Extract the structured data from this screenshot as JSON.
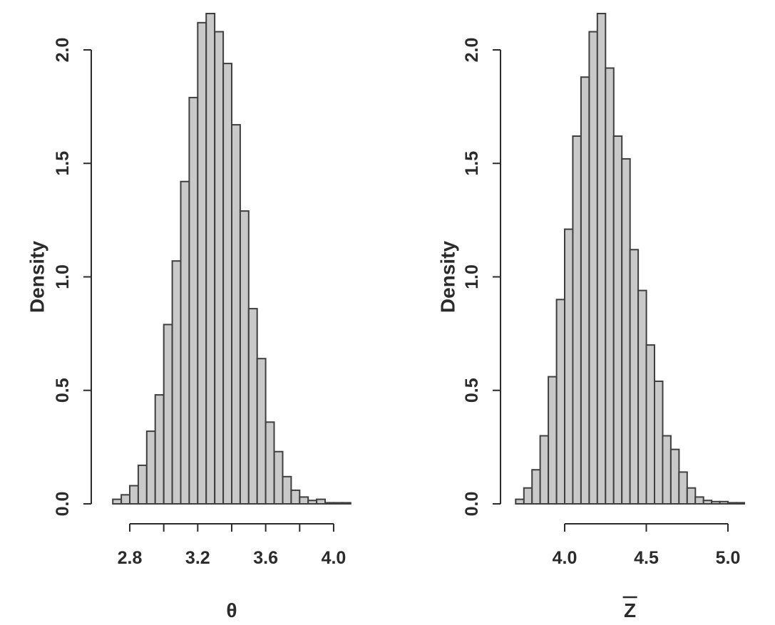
{
  "figure": {
    "background": "#ffffff",
    "axis_color": "#2b2b2b",
    "text_color": "#2b2b2b"
  },
  "chart_data": [
    {
      "type": "bar",
      "subtype": "histogram",
      "title": "",
      "xlabel": "θ",
      "ylabel": "Density",
      "grid": false,
      "legend": "none",
      "bin_start": 2.7,
      "bin_width": 0.05,
      "densities": [
        0.02,
        0.04,
        0.08,
        0.17,
        0.32,
        0.48,
        0.79,
        1.07,
        1.42,
        1.79,
        2.12,
        2.16,
        2.08,
        1.94,
        1.67,
        1.29,
        0.86,
        0.64,
        0.36,
        0.23,
        0.12,
        0.06,
        0.03,
        0.015,
        0.02,
        0.005,
        0.005,
        0.005
      ],
      "x_axis": {
        "range": [
          2.8,
          4.0
        ],
        "ticks": [
          2.8,
          3.0,
          3.2,
          3.4,
          3.6,
          3.8,
          4.0
        ],
        "labeled_ticks": [
          "2.8",
          "3.2",
          "3.6",
          "4.0"
        ]
      },
      "y_axis": {
        "ticks": [
          0.0,
          0.5,
          1.0,
          1.5,
          2.0
        ],
        "labels": [
          "0.0",
          "0.5",
          "1.0",
          "1.5",
          "2.0"
        ]
      },
      "xlim": [
        2.7,
        4.1
      ],
      "ylim": [
        0,
        2.17
      ],
      "bar_fill": "#c9c9c9",
      "bar_stroke": "#3f3f3f"
    },
    {
      "type": "bar",
      "subtype": "histogram",
      "title": "",
      "xlabel": "Z̄",
      "ylabel": "Density",
      "grid": false,
      "legend": "none",
      "bin_start": 3.7,
      "bin_width": 0.05,
      "densities": [
        0.02,
        0.07,
        0.15,
        0.3,
        0.56,
        0.9,
        1.21,
        1.62,
        1.88,
        2.08,
        2.16,
        1.92,
        1.62,
        1.52,
        1.12,
        0.94,
        0.7,
        0.54,
        0.3,
        0.24,
        0.14,
        0.07,
        0.03,
        0.015,
        0.01,
        0.01,
        0.005,
        0.005
      ],
      "x_axis": {
        "range": [
          4.0,
          5.0
        ],
        "ticks": [
          4.0,
          4.5,
          5.0
        ],
        "labeled_ticks": [
          "4.0",
          "4.5",
          "5.0"
        ]
      },
      "y_axis": {
        "ticks": [
          0.0,
          0.5,
          1.0,
          1.5,
          2.0
        ],
        "labels": [
          "0.0",
          "0.5",
          "1.0",
          "1.5",
          "2.0"
        ]
      },
      "xlim": [
        3.7,
        5.1
      ],
      "ylim": [
        0,
        2.17
      ],
      "bar_fill": "#c9c9c9",
      "bar_stroke": "#3f3f3f"
    }
  ]
}
